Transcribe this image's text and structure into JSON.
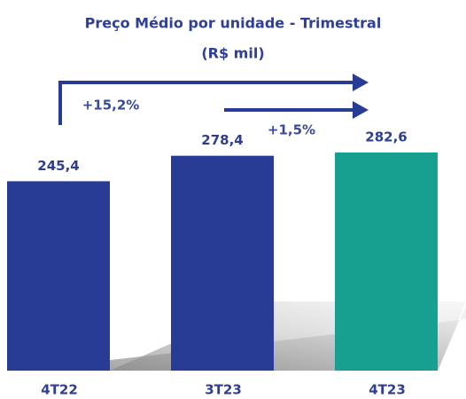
{
  "chart_data": {
    "type": "bar",
    "title": "Preço Médio por unidade - Trimestral",
    "subtitle": "(R$ mil)",
    "categories": [
      "4T22",
      "3T23",
      "4T23"
    ],
    "values": [
      245.4,
      278.4,
      282.6
    ],
    "value_labels": [
      "245,4",
      "278,4",
      "282,6"
    ],
    "colors": [
      "#283c96",
      "#283c96",
      "#17a08f"
    ],
    "annotations": [
      "+15,2%",
      "+1,5%"
    ]
  }
}
